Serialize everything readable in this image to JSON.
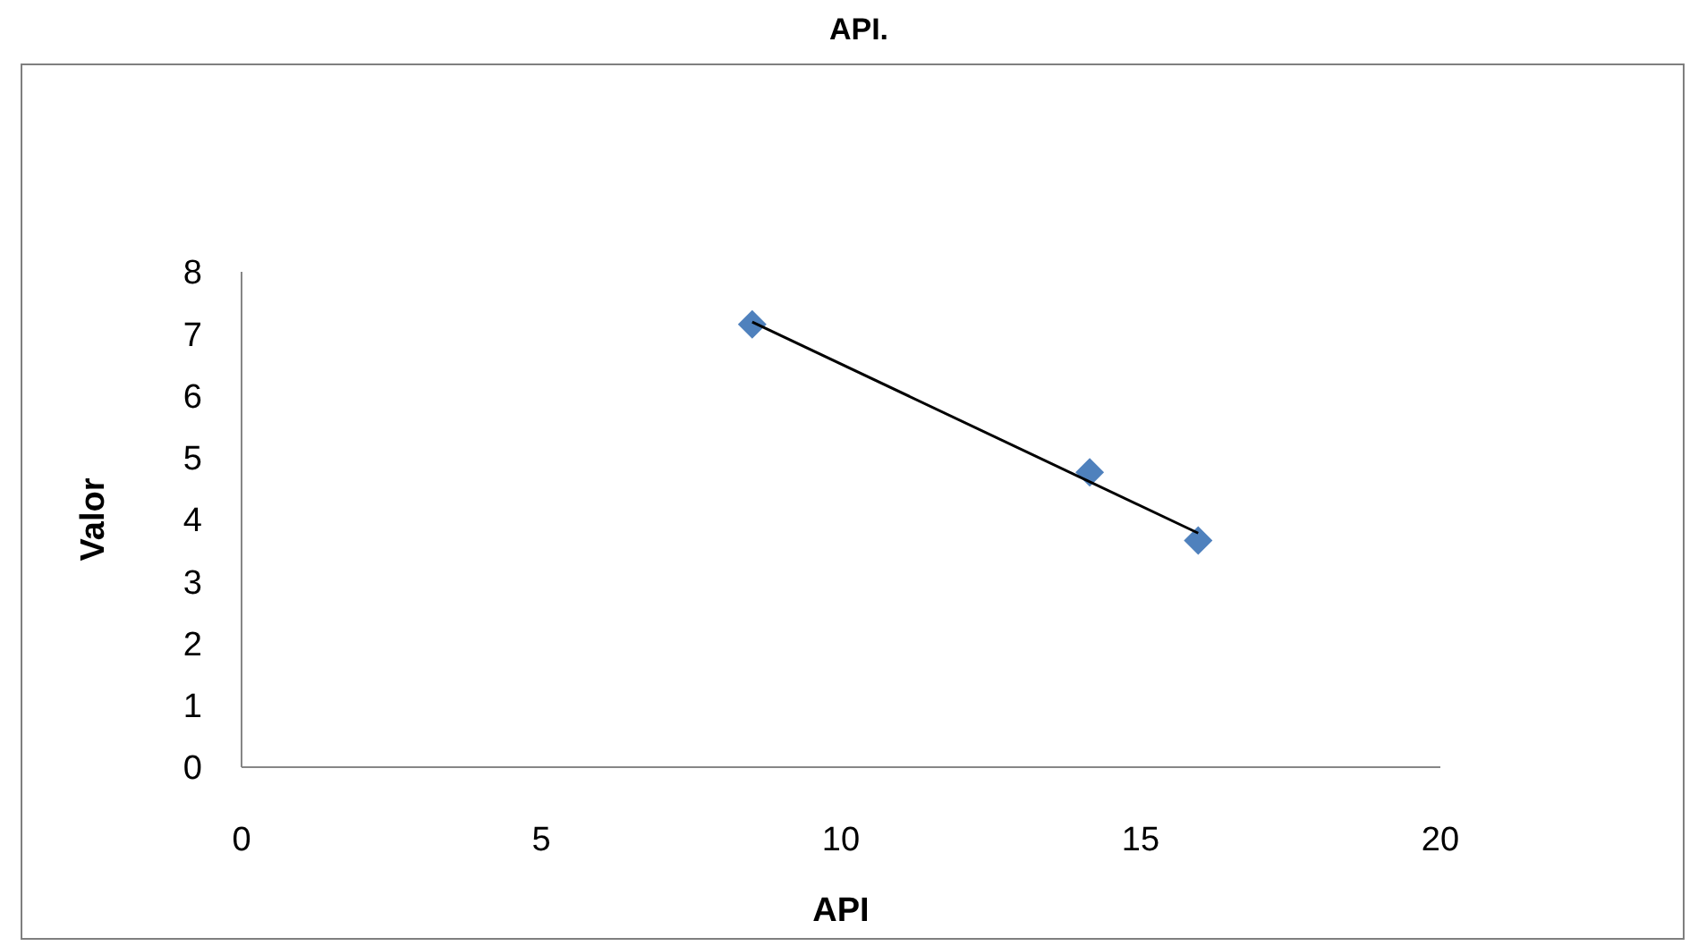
{
  "chart_data": {
    "type": "scatter",
    "title": "API.",
    "xlabel": "API",
    "ylabel": "Valor",
    "xlim": [
      0,
      20
    ],
    "xticks": [
      0,
      5,
      10,
      15,
      20
    ],
    "ylim": [
      0,
      8
    ],
    "yticks": [
      0,
      1,
      2,
      3,
      4,
      5,
      6,
      7,
      8
    ],
    "grid": false,
    "marker": "diamond",
    "series": [
      {
        "color": "#4f81bd",
        "x": [
          8.52,
          14.15,
          15.96
        ],
        "values": [
          7.15,
          4.76,
          3.66
        ]
      },
      {
        "type": "line",
        "color": "#000000",
        "x": [
          8.52,
          15.96
        ],
        "values": [
          7.19,
          3.78
        ],
        "marker": "none",
        "line_style": "solid"
      }
    ]
  }
}
